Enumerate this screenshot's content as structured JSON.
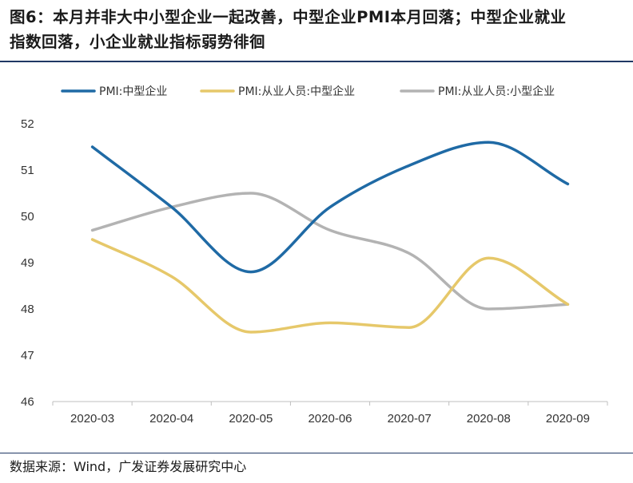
{
  "figure": {
    "title_line1": "图6：本月并非大中小型企业一起改善，中型企业PMI本月回落；中型企业就业",
    "title_line2": "指数回落，小企业就业指标弱势徘徊",
    "source": "数据来源：Wind，广发证券发展研究中心"
  },
  "colors": {
    "series_1": "#1f6aa5",
    "series_2": "#e6c86a",
    "series_3": "#b3b3b3",
    "axis": "#bfbfbf",
    "rule": "#1f3864"
  },
  "chart_data": {
    "type": "line",
    "title": "",
    "xlabel": "",
    "ylabel": "",
    "categories": [
      "2020-03",
      "2020-04",
      "2020-05",
      "2020-06",
      "2020-07",
      "2020-08",
      "2020-09"
    ],
    "ylim": [
      46,
      52
    ],
    "yticks": [
      46,
      47,
      48,
      49,
      50,
      51,
      52
    ],
    "grid": false,
    "legend_position": "top",
    "smooth": true,
    "series": [
      {
        "name": "PMI:中型企业",
        "values": [
          51.5,
          50.2,
          48.8,
          50.2,
          51.1,
          51.6,
          50.7
        ]
      },
      {
        "name": "PMI:从业人员:中型企业",
        "values": [
          49.5,
          48.7,
          47.5,
          47.7,
          47.6,
          49.1,
          48.1
        ]
      },
      {
        "name": "PMI:从业人员:小型企业",
        "values": [
          49.7,
          50.2,
          50.5,
          49.7,
          49.2,
          48.0,
          48.1
        ]
      }
    ]
  }
}
